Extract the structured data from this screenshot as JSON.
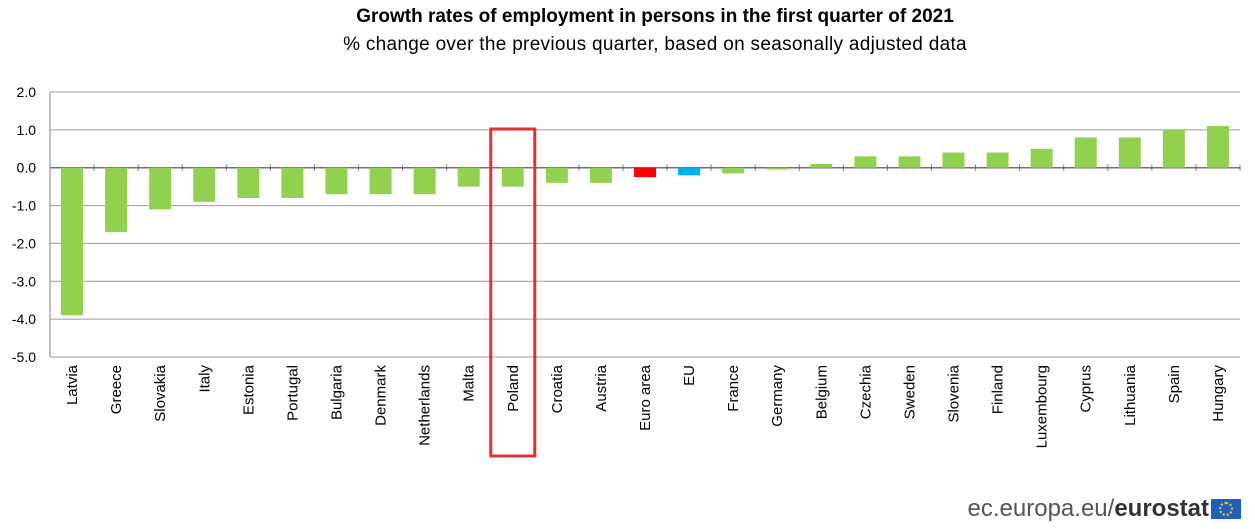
{
  "chart_data": {
    "type": "bar",
    "title": "Growth rates of employment in persons  in the first quarter of 2021",
    "subtitle": "% change over  the previous  quarter, based on seasonally adjusted data",
    "xlabel": "",
    "ylabel": "",
    "ylim": [
      -5.0,
      2.0
    ],
    "yticks": [
      "2.0",
      "1.0",
      "0.0",
      "-1.0",
      "-2.0",
      "-3.0",
      "-4.0",
      "-5.0"
    ],
    "grid": true,
    "categories": [
      "Latvia",
      "Greece",
      "Slovakia",
      "Italy",
      "Estonia",
      "Portugal",
      "Bulgaria",
      "Denmark",
      "Netherlands",
      "Malta",
      "Poland",
      "Croatia",
      "Austria",
      "Euro area",
      "EU",
      "France",
      "Germany",
      "Belgium",
      "Czechia",
      "Sweden",
      "Slovenia",
      "Finland",
      "Luxembourg",
      "Cyprus",
      "Lithuania",
      "Spain",
      "Hungary"
    ],
    "values": [
      -3.9,
      -1.7,
      -1.1,
      -0.9,
      -0.8,
      -0.8,
      -0.7,
      -0.7,
      -0.7,
      -0.5,
      -0.5,
      -0.4,
      -0.4,
      -0.25,
      -0.2,
      -0.15,
      -0.05,
      0.1,
      0.3,
      0.3,
      0.4,
      0.4,
      0.5,
      0.8,
      0.8,
      1.0,
      1.1
    ],
    "colors": {
      "default": "#92d050",
      "Euro area": "#ff0000",
      "EU": "#00b0f0",
      "highlight_box": "#e03030"
    },
    "highlight": "Poland"
  },
  "footer": {
    "site": "ec.europa.eu/",
    "brand": "eurostat"
  }
}
